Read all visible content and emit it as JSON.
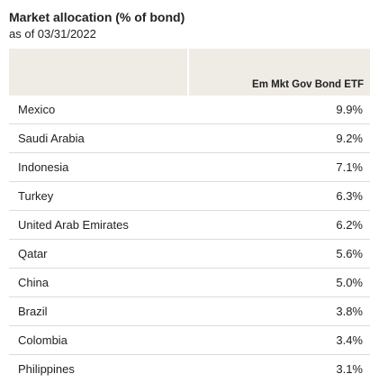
{
  "header": {
    "title": "Market allocation (% of bond)",
    "subtitle": "as of 03/31/2022"
  },
  "table": {
    "column_headers": [
      "",
      "Em Mkt Gov Bond ETF"
    ],
    "rows": [
      {
        "country": "Mexico",
        "value": "9.9%"
      },
      {
        "country": "Saudi Arabia",
        "value": "9.2%"
      },
      {
        "country": "Indonesia",
        "value": "7.1%"
      },
      {
        "country": "Turkey",
        "value": "6.3%"
      },
      {
        "country": "United Arab Emirates",
        "value": "6.2%"
      },
      {
        "country": "Qatar",
        "value": "5.6%"
      },
      {
        "country": "China",
        "value": "5.0%"
      },
      {
        "country": "Brazil",
        "value": "3.8%"
      },
      {
        "country": "Colombia",
        "value": "3.4%"
      },
      {
        "country": "Philippines",
        "value": "3.1%"
      }
    ]
  },
  "colors": {
    "header_background": "#efebe5",
    "row_divider": "#dcdcdc",
    "text": "#222222"
  }
}
